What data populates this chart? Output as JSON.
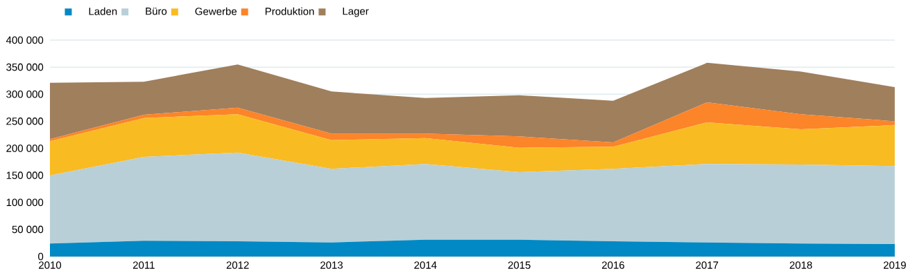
{
  "chart_data": {
    "type": "area",
    "stacked": true,
    "x": [
      2010,
      2011,
      2012,
      2013,
      2014,
      2015,
      2016,
      2017,
      2018,
      2019
    ],
    "xlim": [
      2010,
      2019
    ],
    "xticks": [
      2010,
      2011,
      2012,
      2013,
      2014,
      2015,
      2016,
      2017,
      2018,
      2019
    ],
    "ylim": [
      0,
      400000
    ],
    "yticks": [
      0,
      {
        "value": 50000,
        "label": "50 000"
      },
      {
        "value": 100000,
        "label": "100 000"
      },
      {
        "value": 150000,
        "label": "150 000"
      },
      {
        "value": 200000,
        "label": "200 000"
      },
      {
        "value": 250000,
        "label": "250 000"
      },
      {
        "value": 300000,
        "label": "300 000"
      },
      {
        "value": 350000,
        "label": "350 000"
      },
      {
        "value": 400000,
        "label": "400 000"
      }
    ],
    "grid": "y",
    "legend": "top left",
    "series": [
      {
        "name": "Laden",
        "color": "#0089c4",
        "values": [
          24000,
          29000,
          28000,
          26000,
          31000,
          31000,
          28000,
          26000,
          24000,
          23000
        ]
      },
      {
        "name": "Büro",
        "color": "#b8cfd7",
        "values": [
          126000,
          155000,
          164000,
          136000,
          140000,
          125000,
          134000,
          145000,
          146000,
          144000
        ]
      },
      {
        "name": "Gewerbe",
        "color": "#f9bb22",
        "values": [
          63000,
          72000,
          71000,
          53000,
          48000,
          45000,
          41000,
          77000,
          65000,
          76000
        ]
      },
      {
        "name": "Produktion",
        "color": "#fc8429",
        "values": [
          4000,
          6000,
          12000,
          12000,
          8000,
          21000,
          8000,
          37000,
          28000,
          7000
        ]
      },
      {
        "name": "Lager",
        "color": "#a07f5d",
        "values": [
          104000,
          61000,
          80000,
          78000,
          66000,
          76000,
          77000,
          73000,
          79000,
          63000
        ]
      }
    ]
  }
}
